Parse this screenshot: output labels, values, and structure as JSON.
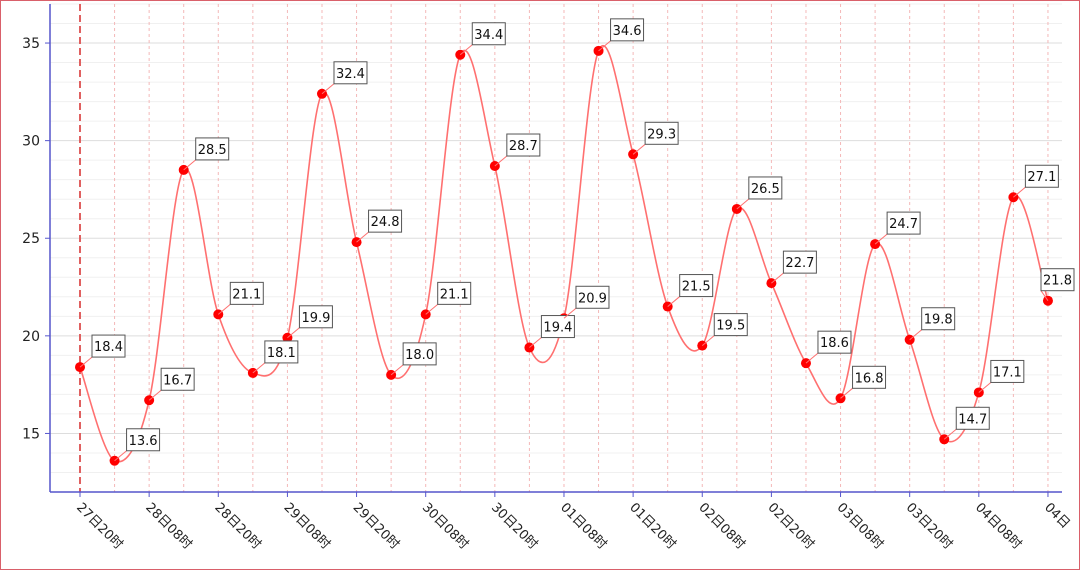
{
  "chart_data": {
    "type": "line",
    "title": "",
    "xlabel": "",
    "ylabel": "",
    "ylim": [
      12,
      37
    ],
    "y_ticks": [
      15,
      20,
      25,
      30,
      35
    ],
    "grid": true,
    "x_tick_labels": [
      "27日20时",
      "28日08时",
      "28日20时",
      "29日08时",
      "29日20时",
      "30日08时",
      "30日20时",
      "01日08时",
      "01日20时",
      "02日08时",
      "02日20时",
      "03日08时",
      "03日20时",
      "04日08时",
      "04日"
    ],
    "series": [
      {
        "color": "#ff0000",
        "values": [
          18.4,
          13.6,
          16.7,
          28.5,
          21.1,
          18.1,
          19.9,
          32.4,
          24.8,
          18.0,
          21.1,
          34.4,
          28.7,
          19.4,
          20.9,
          34.6,
          29.3,
          21.5,
          19.5,
          26.5,
          22.7,
          18.6,
          16.8,
          24.7,
          19.8,
          14.7,
          17.1,
          27.1,
          21.8
        ]
      }
    ],
    "colors": {
      "line": "#ff7070",
      "point": "#ff0000",
      "axis": "#5555cc",
      "vgrid": "#f4b8b8",
      "hgrid": "#dddddd",
      "current_marker": "#e06060",
      "frame": "#d9606a"
    }
  }
}
